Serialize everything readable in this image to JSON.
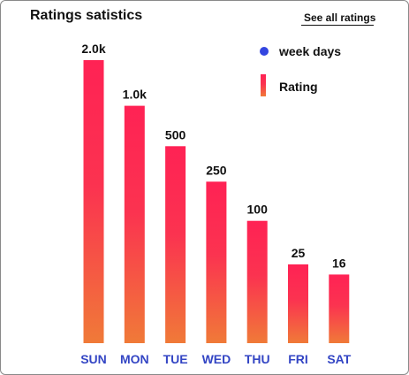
{
  "header": {
    "title": "Ratings satistics",
    "see_all_label": "See all ratings"
  },
  "legend": {
    "items": [
      {
        "label": "week days",
        "marker": "circle",
        "color": "#3345e0"
      },
      {
        "label": "Rating",
        "marker": "gradient-bar"
      }
    ]
  },
  "colors": {
    "bar_top": "#ff2254",
    "bar_bottom": "#f07a38",
    "category_text": "#3345c4"
  },
  "chart_data": {
    "type": "bar",
    "title": "Ratings satistics",
    "xlabel": "",
    "ylabel": "",
    "categories": [
      "SUN",
      "MON",
      "TUE",
      "WED",
      "THU",
      "FRI",
      "SAT"
    ],
    "values": [
      2000,
      1000,
      500,
      250,
      100,
      25,
      16
    ],
    "value_labels": [
      "2.0k",
      "1.0k",
      "500",
      "250",
      "100",
      "25",
      "16"
    ],
    "series": [
      {
        "name": "Rating",
        "values": [
          2000,
          1000,
          500,
          250,
          100,
          25,
          16
        ]
      }
    ],
    "grid": false,
    "legend_position": "top-right"
  }
}
